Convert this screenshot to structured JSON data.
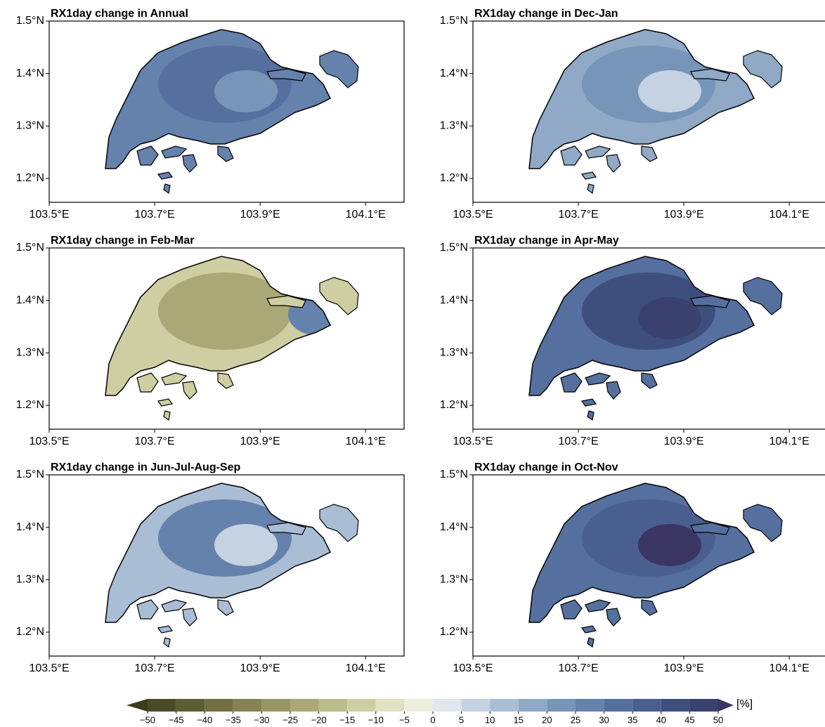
{
  "chart_data": [
    {
      "type": "map",
      "title": "RX1day change in Annual",
      "xlim": [
        103.5,
        104.173
      ],
      "ylim": [
        1.1545,
        1.5
      ],
      "xticks": [
        {
          "value": 103.5,
          "label": "103.5°E"
        },
        {
          "value": 103.7,
          "label": "103.7°E"
        },
        {
          "value": 103.9,
          "label": "103.9°E"
        },
        {
          "value": 104.1,
          "label": "104.1°E"
        }
      ],
      "yticks": [
        {
          "value": 1.2,
          "label": "1.2°N"
        },
        {
          "value": 1.3,
          "label": "1.3°N"
        },
        {
          "value": 1.4,
          "label": "1.4°N"
        },
        {
          "value": 1.5,
          "label": "1.5°N"
        }
      ],
      "colors": [
        "#6582ad",
        "#55709e",
        "#7795b9"
      ]
    },
    {
      "type": "map",
      "title": "RX1day change in Dec-Jan",
      "xlim": [
        103.5,
        104.173
      ],
      "ylim": [
        1.1545,
        1.5
      ],
      "xticks": [
        {
          "value": 103.5,
          "label": "103.5°E"
        },
        {
          "value": 103.7,
          "label": "103.7°E"
        },
        {
          "value": 103.9,
          "label": "103.9°E"
        },
        {
          "value": 104.1,
          "label": "104.1°E"
        }
      ],
      "yticks": [
        {
          "value": 1.2,
          "label": "1.2°N"
        },
        {
          "value": 1.3,
          "label": "1.3°N"
        },
        {
          "value": 1.4,
          "label": "1.4°N"
        },
        {
          "value": 1.5,
          "label": "1.5°N"
        }
      ],
      "colors": [
        "#8fa9c7",
        "#7795b9",
        "#c4d2e2"
      ]
    },
    {
      "type": "map",
      "title": "RX1day change in Feb-Mar",
      "xlim": [
        103.5,
        104.173
      ],
      "ylim": [
        1.1545,
        1.5
      ],
      "xticks": [
        {
          "value": 103.5,
          "label": "103.5°E"
        },
        {
          "value": 103.7,
          "label": "103.7°E"
        },
        {
          "value": 103.9,
          "label": "103.9°E"
        },
        {
          "value": 104.1,
          "label": "104.1°E"
        }
      ],
      "yticks": [
        {
          "value": 1.2,
          "label": "1.2°N"
        },
        {
          "value": 1.3,
          "label": "1.3°N"
        },
        {
          "value": 1.4,
          "label": "1.4°N"
        },
        {
          "value": 1.5,
          "label": "1.5°N"
        }
      ],
      "colors": [
        "#cfcea3",
        "#aaa876",
        "#6582ad"
      ]
    },
    {
      "type": "map",
      "title": "RX1day change in Apr-May",
      "xlim": [
        103.5,
        104.173
      ],
      "ylim": [
        1.1545,
        1.5
      ],
      "xticks": [
        {
          "value": 103.5,
          "label": "103.5°E"
        },
        {
          "value": 103.7,
          "label": "103.7°E"
        },
        {
          "value": 103.9,
          "label": "103.9°E"
        },
        {
          "value": 104.1,
          "label": "104.1°E"
        }
      ],
      "yticks": [
        {
          "value": 1.2,
          "label": "1.2°N"
        },
        {
          "value": 1.3,
          "label": "1.3°N"
        },
        {
          "value": 1.4,
          "label": "1.4°N"
        },
        {
          "value": 1.5,
          "label": "1.5°N"
        }
      ],
      "colors": [
        "#55709e",
        "#3e4f7e",
        "#3a416f"
      ]
    },
    {
      "type": "map",
      "title": "RX1day change in Jun-Jul-Aug-Sep",
      "xlim": [
        103.5,
        104.173
      ],
      "ylim": [
        1.1545,
        1.5
      ],
      "xticks": [
        {
          "value": 103.5,
          "label": "103.5°E"
        },
        {
          "value": 103.7,
          "label": "103.7°E"
        },
        {
          "value": 103.9,
          "label": "103.9°E"
        },
        {
          "value": 104.1,
          "label": "104.1°E"
        }
      ],
      "yticks": [
        {
          "value": 1.2,
          "label": "1.2°N"
        },
        {
          "value": 1.3,
          "label": "1.3°N"
        },
        {
          "value": 1.4,
          "label": "1.4°N"
        },
        {
          "value": 1.5,
          "label": "1.5°N"
        }
      ],
      "colors": [
        "#a9bdd4",
        "#6582ad",
        "#c4d2e2"
      ]
    },
    {
      "type": "map",
      "title": "RX1day change in Oct-Nov",
      "xlim": [
        103.5,
        104.173
      ],
      "ylim": [
        1.1545,
        1.5
      ],
      "xticks": [
        {
          "value": 103.5,
          "label": "103.5°E"
        },
        {
          "value": 103.7,
          "label": "103.7°E"
        },
        {
          "value": 103.9,
          "label": "103.9°E"
        },
        {
          "value": 104.1,
          "label": "104.1°E"
        }
      ],
      "yticks": [
        {
          "value": 1.2,
          "label": "1.2°N"
        },
        {
          "value": 1.3,
          "label": "1.3°N"
        },
        {
          "value": 1.4,
          "label": "1.4°N"
        },
        {
          "value": 1.5,
          "label": "1.5°N"
        }
      ],
      "colors": [
        "#55709e",
        "#485f8f",
        "#3a3563"
      ]
    },
    {
      "type": "colorbar",
      "unit_label": "[%]",
      "ticks": [
        {
          "value": -50,
          "label": "−50"
        },
        {
          "value": -45,
          "label": "−45"
        },
        {
          "value": -40,
          "label": "−40"
        },
        {
          "value": -35,
          "label": "−35"
        },
        {
          "value": -30,
          "label": "−30"
        },
        {
          "value": -25,
          "label": "−25"
        },
        {
          "value": -20,
          "label": "−20"
        },
        {
          "value": -15,
          "label": "−15"
        },
        {
          "value": -10,
          "label": "−10"
        },
        {
          "value": -5,
          "label": "−5"
        },
        0,
        5,
        10,
        15,
        20,
        25,
        30,
        35,
        40,
        45,
        50
      ],
      "colors": [
        "#3d3b1c",
        "#4c4a26",
        "#5e5c33",
        "#716f42",
        "#858352",
        "#989663",
        "#aaa876",
        "#bcbb8b",
        "#cfcea3",
        "#e1e0c2",
        "#eeeedf",
        "#dfe6ee",
        "#c4d2e2",
        "#a9bdd4",
        "#8fa9c7",
        "#7795b9",
        "#6582ad",
        "#55709e",
        "#485f8f",
        "#3e4f7e",
        "#3a416f",
        "#3a3563"
      ]
    }
  ]
}
